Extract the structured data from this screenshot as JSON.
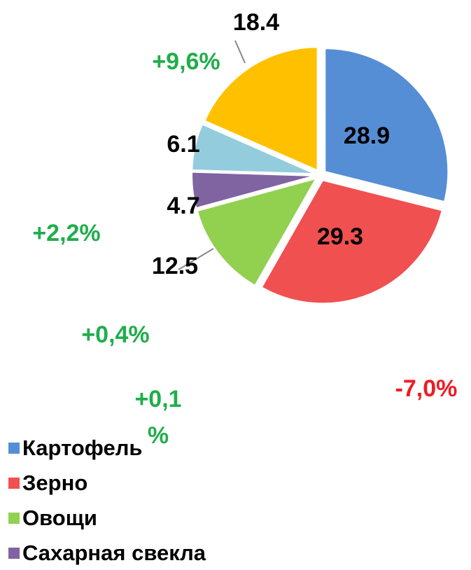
{
  "chart_data": {
    "type": "pie",
    "categories": [
      "Картофель",
      "Зерно",
      "Овощи",
      "Сахарная свекла",
      null,
      null
    ],
    "values": [
      28.9,
      29.3,
      12.5,
      4.7,
      6.1,
      18.4
    ],
    "colors": [
      "#558ed5",
      "#f0504f",
      "#92d050",
      "#8064a2",
      "#93cddd",
      "#ffc000"
    ],
    "annotations": [
      {
        "text": "+9,6%",
        "color": "#1fae4b"
      },
      {
        "text": "+2,2%",
        "color": "#1fae4b"
      },
      {
        "text": "+0,4%",
        "color": "#1fae4b"
      },
      {
        "text": "+0,1 %",
        "color": "#1fae4b"
      },
      {
        "text": "-7,0%",
        "color": "#ee1c25"
      }
    ]
  }
}
